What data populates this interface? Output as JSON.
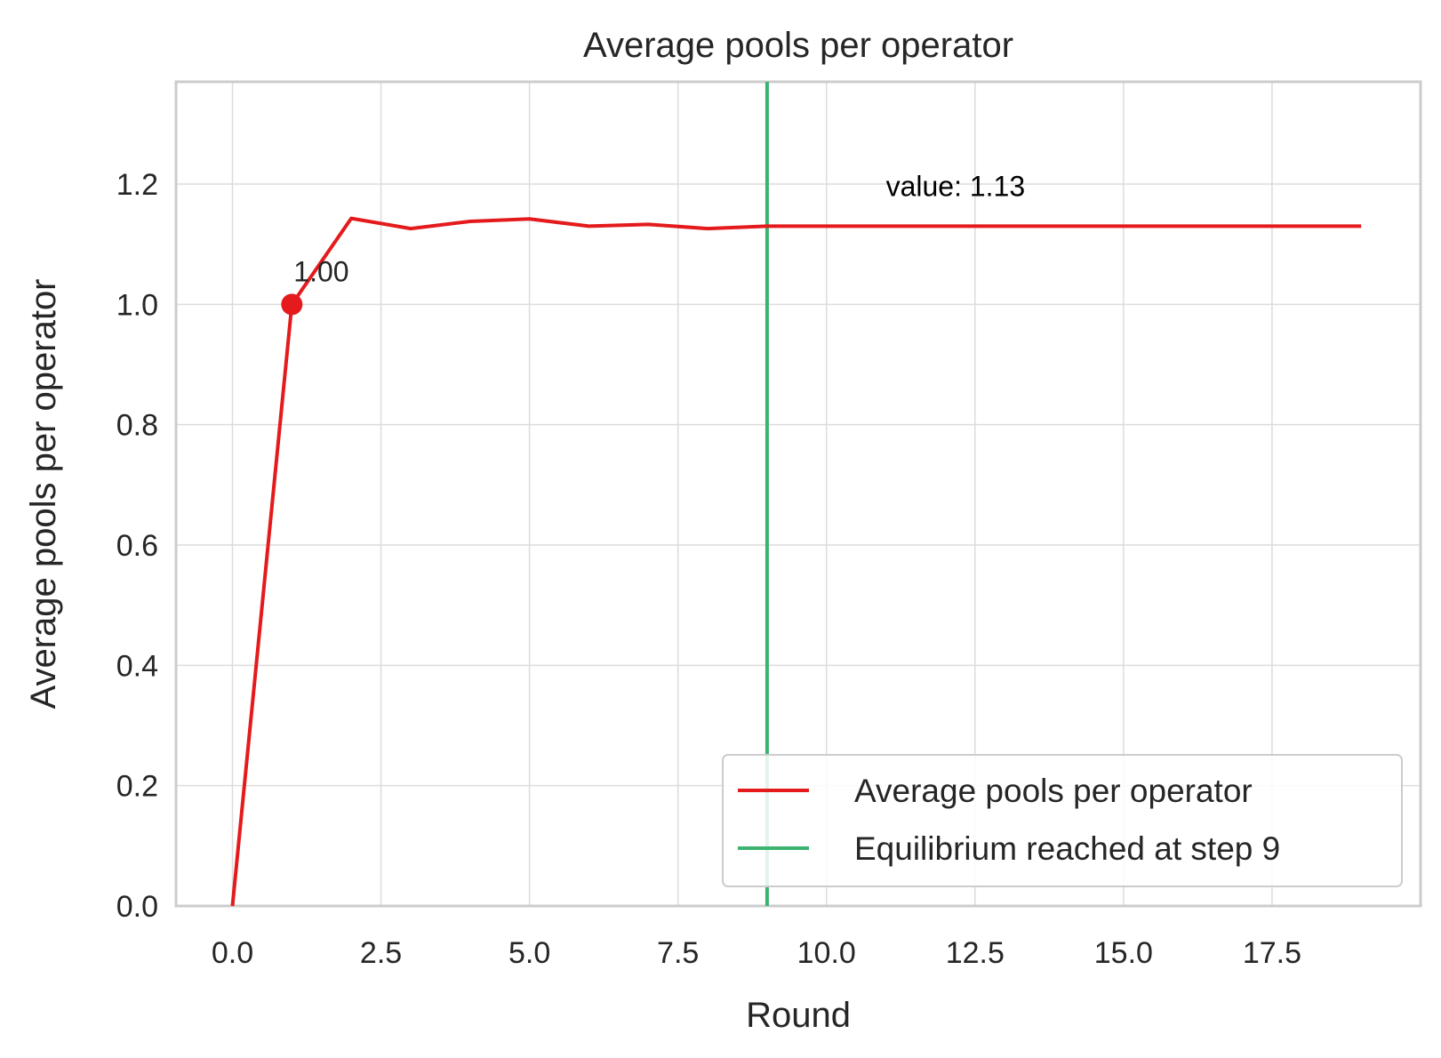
{
  "chart_data": {
    "type": "line",
    "title": "Average pools per operator",
    "xlabel": "Round",
    "ylabel": "Average pools per operator",
    "xlim": [
      -0.95,
      20.0
    ],
    "ylim": [
      0,
      1.37
    ],
    "xticks": [
      0.0,
      2.5,
      5.0,
      7.5,
      10.0,
      12.5,
      15.0,
      17.5
    ],
    "xtick_labels": [
      "0.0",
      "2.5",
      "5.0",
      "7.5",
      "10.0",
      "12.5",
      "15.0",
      "17.5"
    ],
    "yticks": [
      0.0,
      0.2,
      0.4,
      0.6,
      0.8,
      1.0,
      1.2
    ],
    "ytick_labels": [
      "0.0",
      "0.2",
      "0.4",
      "0.6",
      "0.8",
      "1.0",
      "1.2"
    ],
    "grid": true,
    "legend_position": "lower-right",
    "series": [
      {
        "name": "Average pools per operator",
        "color": "#e41a1c",
        "x": [
          0,
          1,
          2,
          3,
          4,
          5,
          6,
          7,
          8,
          9,
          10,
          11,
          12,
          13,
          14,
          15,
          16,
          17,
          18,
          19
        ],
        "y": [
          0.0,
          1.0,
          1.143,
          1.126,
          1.138,
          1.142,
          1.13,
          1.133,
          1.126,
          1.13,
          1.13,
          1.13,
          1.13,
          1.13,
          1.13,
          1.13,
          1.13,
          1.13,
          1.13,
          1.13
        ]
      }
    ],
    "vline": {
      "x": 9,
      "name": "Equilibrium reached at step 9",
      "color": "#3cb371"
    },
    "highlight_point": {
      "x": 1,
      "y": 1.0,
      "label": "1.00"
    },
    "annotations": [
      {
        "text": "value: 1.13",
        "x": 11.0,
        "y": 1.18
      }
    ]
  }
}
